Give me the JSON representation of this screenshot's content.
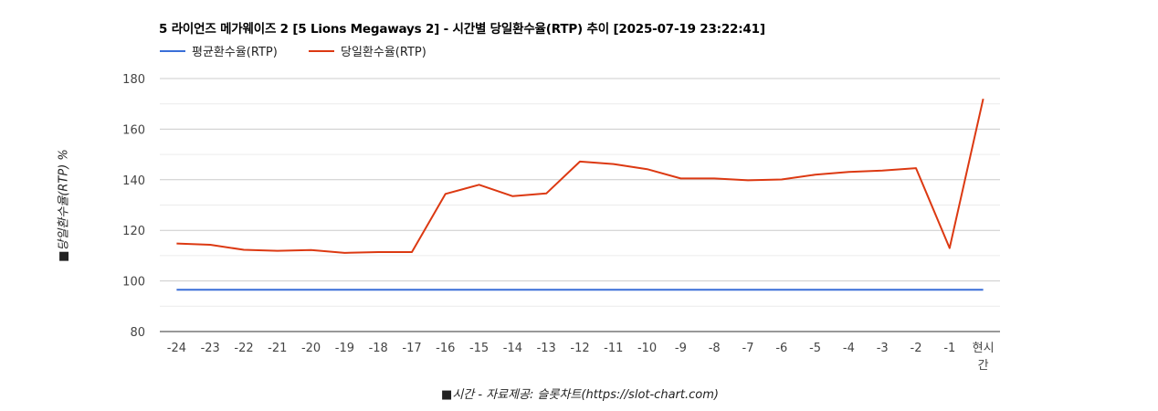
{
  "chart_data": {
    "type": "line",
    "title": "5 라이언즈 메가웨이즈 2 [5 Lions Megaways 2] - 시간별 당일환수율(RTP) 추이 [2025-07-19 23:22:41]",
    "xlabel": "■시간 - 자료제공: 슬롯차트(https://slot-chart.com)",
    "ylabel": "■당일환수율(RTP) %",
    "categories": [
      "-24",
      "-23",
      "-22",
      "-21",
      "-20",
      "-19",
      "-18",
      "-17",
      "-16",
      "-15",
      "-14",
      "-13",
      "-12",
      "-11",
      "-10",
      "-9",
      "-8",
      "-7",
      "-6",
      "-5",
      "-4",
      "-3",
      "-2",
      "-1",
      "현시간"
    ],
    "ylim": [
      80,
      180
    ],
    "yticks": [
      80,
      100,
      120,
      140,
      160,
      180
    ],
    "grid": true,
    "legend_position": "top-left",
    "series": [
      {
        "name": "평균환수율(RTP)",
        "color": "#3a6fd8",
        "values": [
          96.5,
          96.5,
          96.5,
          96.5,
          96.5,
          96.5,
          96.5,
          96.5,
          96.5,
          96.5,
          96.5,
          96.5,
          96.5,
          96.5,
          96.5,
          96.5,
          96.5,
          96.5,
          96.5,
          96.5,
          96.5,
          96.5,
          96.5,
          96.5,
          96.5
        ]
      },
      {
        "name": "당일환수율(RTP)",
        "color": "#dc3912",
        "values": [
          114.8,
          114.3,
          112.3,
          111.9,
          112.2,
          111.1,
          111.4,
          111.4,
          134.4,
          138.0,
          133.5,
          134.6,
          147.2,
          146.2,
          144.2,
          140.5,
          140.5,
          139.8,
          140.1,
          142.0,
          143.1,
          143.6,
          144.6,
          113.0,
          172.0
        ]
      }
    ]
  }
}
